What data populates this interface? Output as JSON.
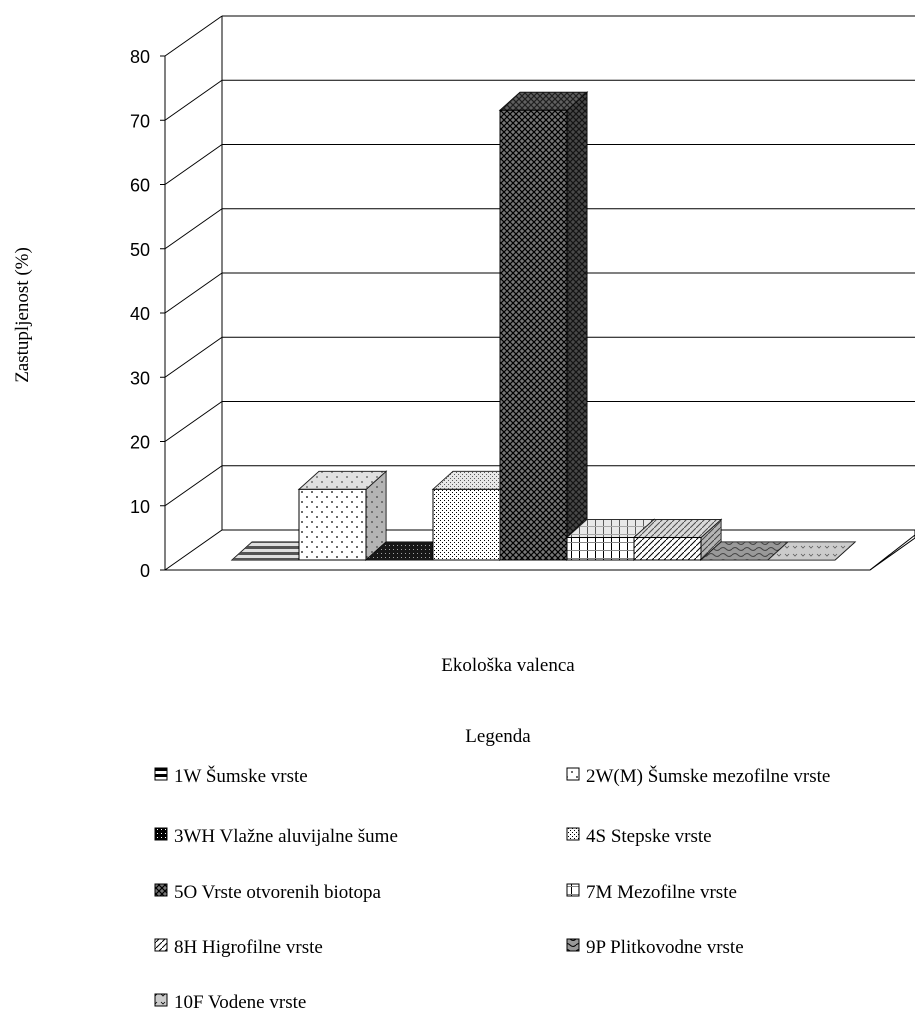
{
  "chart_data": {
    "type": "bar",
    "title": "",
    "xlabel": "Ekološka valenca",
    "ylabel": "Zastupljenost (%)",
    "ylim": [
      0,
      80
    ],
    "yticks": [
      "0",
      "10",
      "20",
      "30",
      "40",
      "50",
      "60",
      "70",
      "80"
    ],
    "grid": true,
    "legend_title": "Legenda",
    "legend_position": "bottom",
    "categories": [
      "1W Šumske vrste",
      "2W(M) Šumske mezofilne vrste",
      "3WH Vlažne aluvijalne šume",
      "4S Stepske vrste",
      "5O Vrste otvorenih biotopa",
      "7M Mezofilne vrste",
      "8H Higrofilne vrste",
      "9P Plitkovodne vrste",
      "10F Vodene vrste"
    ],
    "values": [
      0,
      11,
      0,
      11,
      70,
      3.5,
      3.5,
      0,
      0
    ]
  }
}
